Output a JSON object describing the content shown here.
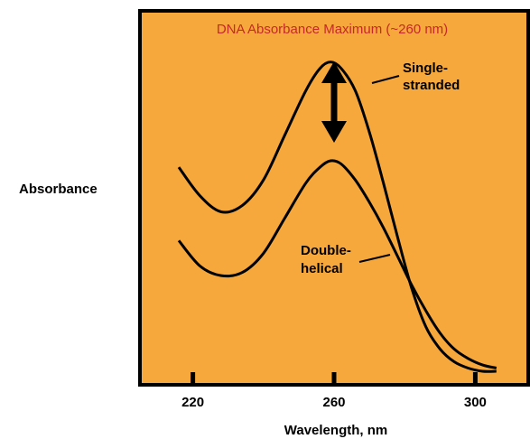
{
  "chart_data": {
    "type": "line",
    "title": "DNA Absorbance Maximum (~260 nm)",
    "xlabel": "Wavelength, nm",
    "ylabel": "Absorbance",
    "xlim": [
      205,
      315
    ],
    "ylim": [
      0,
      1
    ],
    "x_ticks": [
      220,
      260,
      300
    ],
    "grid": false,
    "legend": "none",
    "colors": {
      "plot_background": "#f7a83d",
      "title": "#c62828",
      "lines": "#000000"
    },
    "series": [
      {
        "x": [
          216,
          222,
          228,
          234,
          240,
          246,
          252,
          256,
          259,
          262,
          266,
          270,
          274,
          278,
          282,
          286,
          290,
          294,
          298,
          302,
          306
        ],
        "y": [
          0.64,
          0.55,
          0.5,
          0.52,
          0.6,
          0.74,
          0.88,
          0.95,
          0.97,
          0.95,
          0.88,
          0.75,
          0.59,
          0.42,
          0.26,
          0.14,
          0.07,
          0.03,
          0.01,
          0.0,
          0.0
        ]
      },
      {
        "x": [
          216,
          222,
          228,
          234,
          240,
          246,
          252,
          256,
          259,
          262,
          266,
          270,
          274,
          278,
          282,
          286,
          290,
          294,
          298,
          302,
          306
        ],
        "y": [
          0.41,
          0.33,
          0.3,
          0.31,
          0.37,
          0.48,
          0.59,
          0.64,
          0.66,
          0.65,
          0.6,
          0.53,
          0.45,
          0.36,
          0.27,
          0.19,
          0.12,
          0.07,
          0.04,
          0.02,
          0.01
        ]
      }
    ],
    "annotations": [
      {
        "text": "Single-",
        "x": 285,
        "y": 0.91
      },
      {
        "text": "stranded",
        "x": 285,
        "y": 0.86
      },
      {
        "text": "Double-",
        "x": 272,
        "y": 0.32
      },
      {
        "text": "helical",
        "x": 272,
        "y": 0.27
      }
    ]
  }
}
